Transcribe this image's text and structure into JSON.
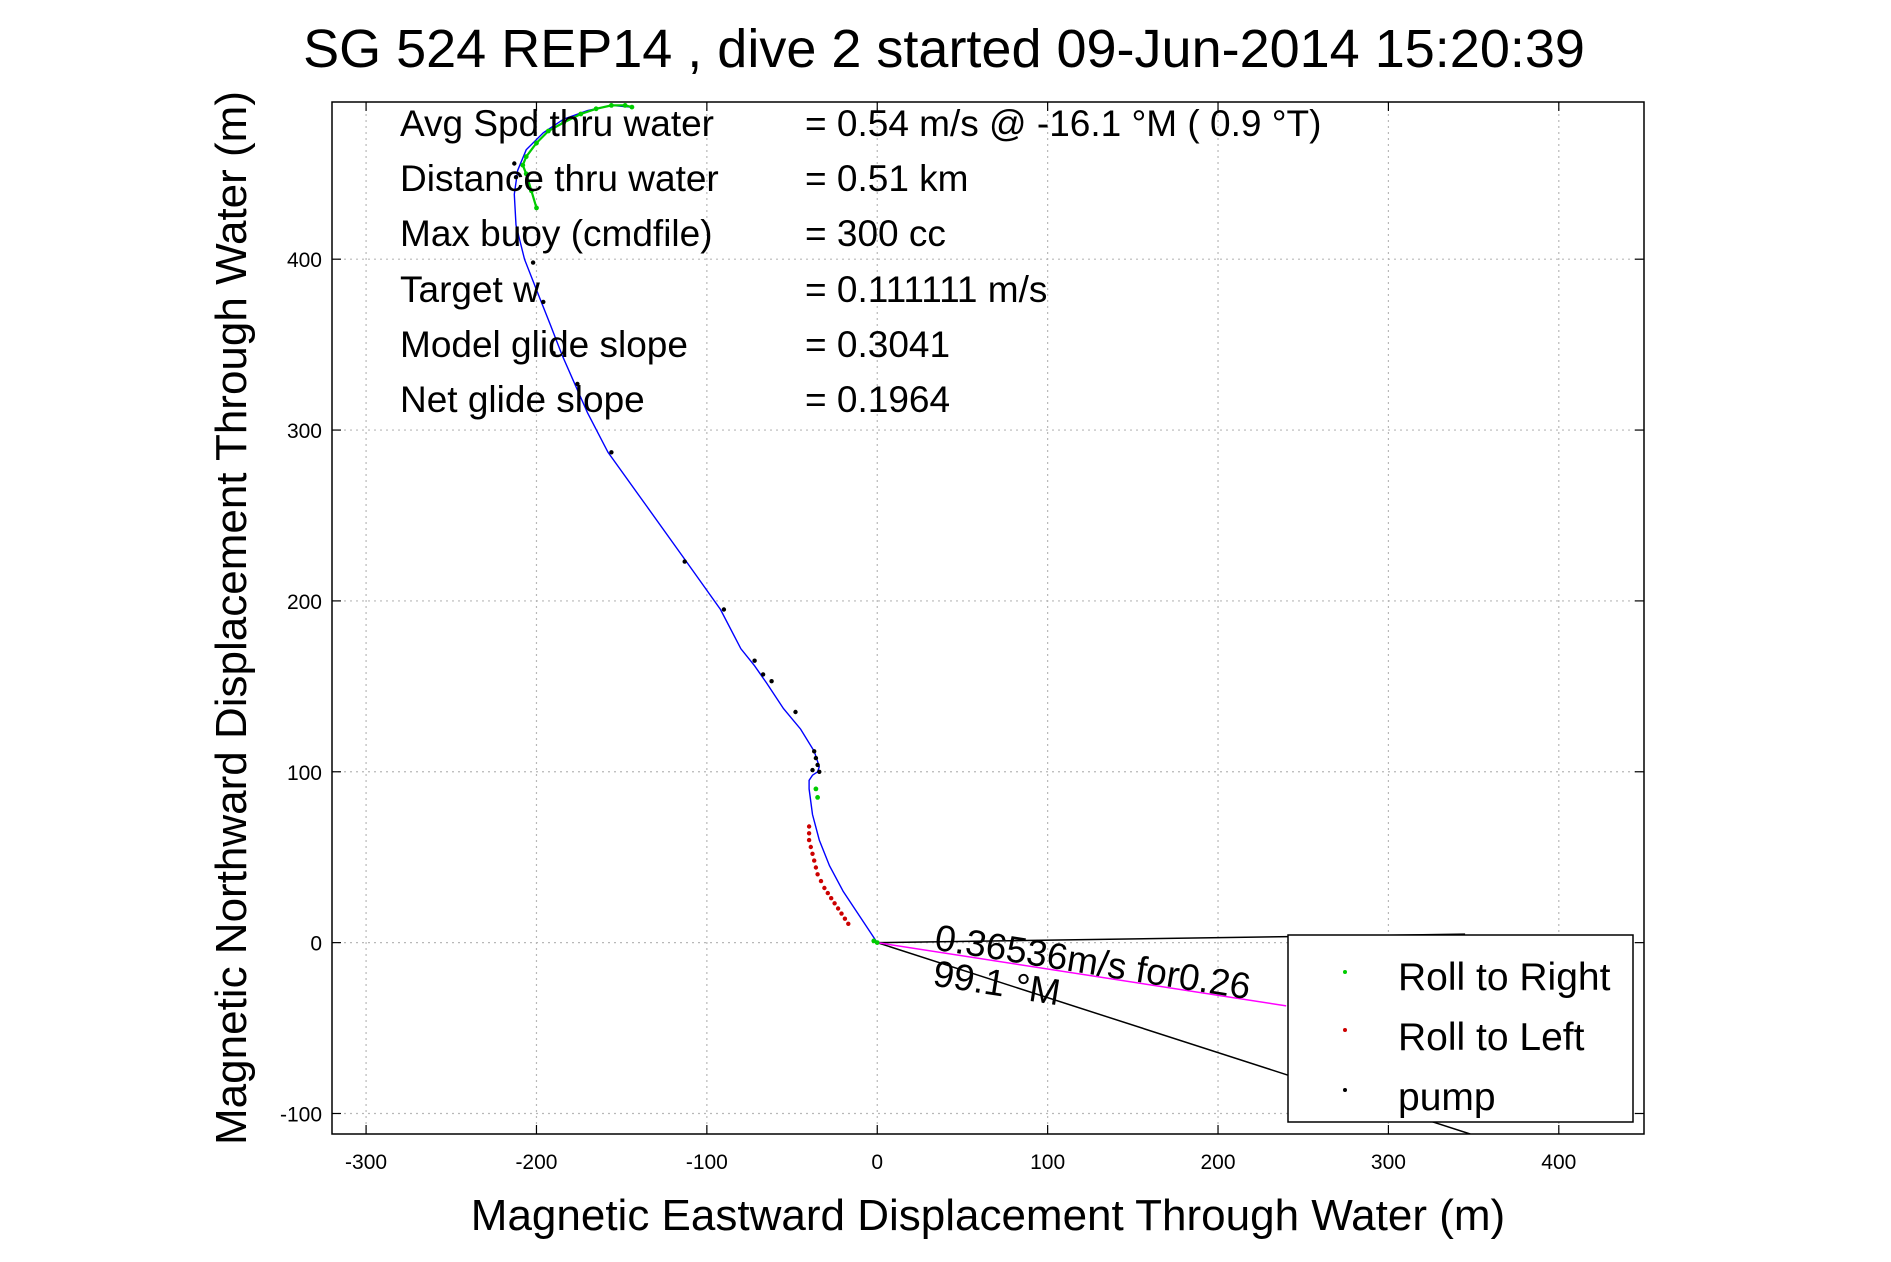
{
  "chart_data": {
    "type": "line",
    "title": "SG 524   REP14  , dive 2 started 09-Jun-2014 15:20:39",
    "xlabel": "Magnetic Eastward Displacement Through Water (m)",
    "ylabel": "Magnetic Northward Displacement Through Water (m)",
    "xlim": [
      -320,
      450
    ],
    "ylim": [
      -112,
      492
    ],
    "xticks": [
      -300,
      -200,
      -100,
      0,
      100,
      200,
      300,
      400
    ],
    "yticks": [
      -100,
      0,
      100,
      200,
      300,
      400
    ],
    "xtick_labels": [
      "-300",
      "-200",
      "-100",
      "0",
      "100",
      "200",
      "300",
      "400"
    ],
    "ytick_labels": [
      "-100",
      "0",
      "100",
      "200",
      "300",
      "400"
    ],
    "grid": true,
    "legend_position": "bottom-right",
    "colors": {
      "track": "#0000ff",
      "roll_right": "#00cc00",
      "roll_left": "#cc0000",
      "pump": "#000000",
      "speed_line": "#ff00ff",
      "heading_line": "#000000"
    },
    "annotations": [
      {
        "label": "Avg Spd thru water",
        "value": "=  0.54 m/s @ -16.1 °M (  0.9 °T)"
      },
      {
        "label": "Distance thru water",
        "value": "=  0.51 km"
      },
      {
        "label": "Max buoy (cmdfile)",
        "value": "= 300 cc"
      },
      {
        "label": "Target w",
        "value": "= 0.111111 m/s"
      },
      {
        "label": "Model glide slope",
        "value": "= 0.3041"
      },
      {
        "label": "Net glide slope",
        "value": "= 0.1964"
      }
    ],
    "vector_labels": {
      "speed": "0.36536m/s for0.26",
      "heading": "99.1 °M"
    },
    "legend": [
      {
        "name": "Roll to Right",
        "color": "#00cc00"
      },
      {
        "name": "Roll to Left",
        "color": "#cc0000"
      },
      {
        "name": "pump",
        "color": "#000000"
      }
    ],
    "series": [
      {
        "name": "track",
        "x": [
          0,
          -10,
          -20,
          -28,
          -34,
          -38,
          -40,
          -40,
          -38,
          -35,
          -34,
          -37,
          -45,
          -55,
          -65,
          -72,
          -80,
          -92,
          -112,
          -135,
          -158,
          -170,
          -178,
          -185,
          -192,
          -200,
          -207,
          -212,
          -213,
          -211,
          -206,
          -196,
          -184,
          -170,
          -156,
          -145
        ],
        "y": [
          0,
          15,
          30,
          45,
          60,
          75,
          90,
          95,
          98,
          100,
          103,
          112,
          125,
          137,
          152,
          162,
          172,
          195,
          223,
          255,
          287,
          310,
          328,
          344,
          362,
          382,
          400,
          420,
          438,
          452,
          464,
          474,
          482,
          487,
          490,
          489
        ]
      },
      {
        "name": "Roll to Right",
        "x": [
          0,
          -2,
          -35,
          -36,
          -200,
          -203,
          -206,
          -208,
          -206,
          -200,
          -193,
          -184,
          -174,
          -165,
          -156,
          -148,
          -144
        ],
        "y": [
          0,
          1,
          85,
          90,
          430,
          440,
          450,
          455,
          460,
          468,
          475,
          480,
          485,
          488,
          490,
          490,
          489
        ]
      },
      {
        "name": "Roll to Left",
        "x": [
          -40,
          -40,
          -40,
          -39,
          -38,
          -37,
          -36,
          -35,
          -33,
          -31,
          -29,
          -27,
          -25,
          -23,
          -21,
          -19,
          -17
        ],
        "y": [
          68,
          64,
          60,
          56,
          52,
          48,
          44,
          40,
          36,
          32,
          29,
          26,
          23,
          20,
          17,
          14,
          11
        ]
      },
      {
        "name": "pump",
        "x": [
          -34,
          -35,
          -36,
          -37,
          -38,
          -48,
          -62,
          -67,
          -72,
          -90,
          -113,
          -156,
          -176,
          -190,
          -196,
          -202,
          -207,
          -212,
          -213
        ],
        "y": [
          100,
          104,
          108,
          112,
          101,
          135,
          153,
          157,
          165,
          195,
          223,
          287,
          327,
          345,
          375,
          398,
          418,
          448,
          456
        ]
      }
    ]
  }
}
